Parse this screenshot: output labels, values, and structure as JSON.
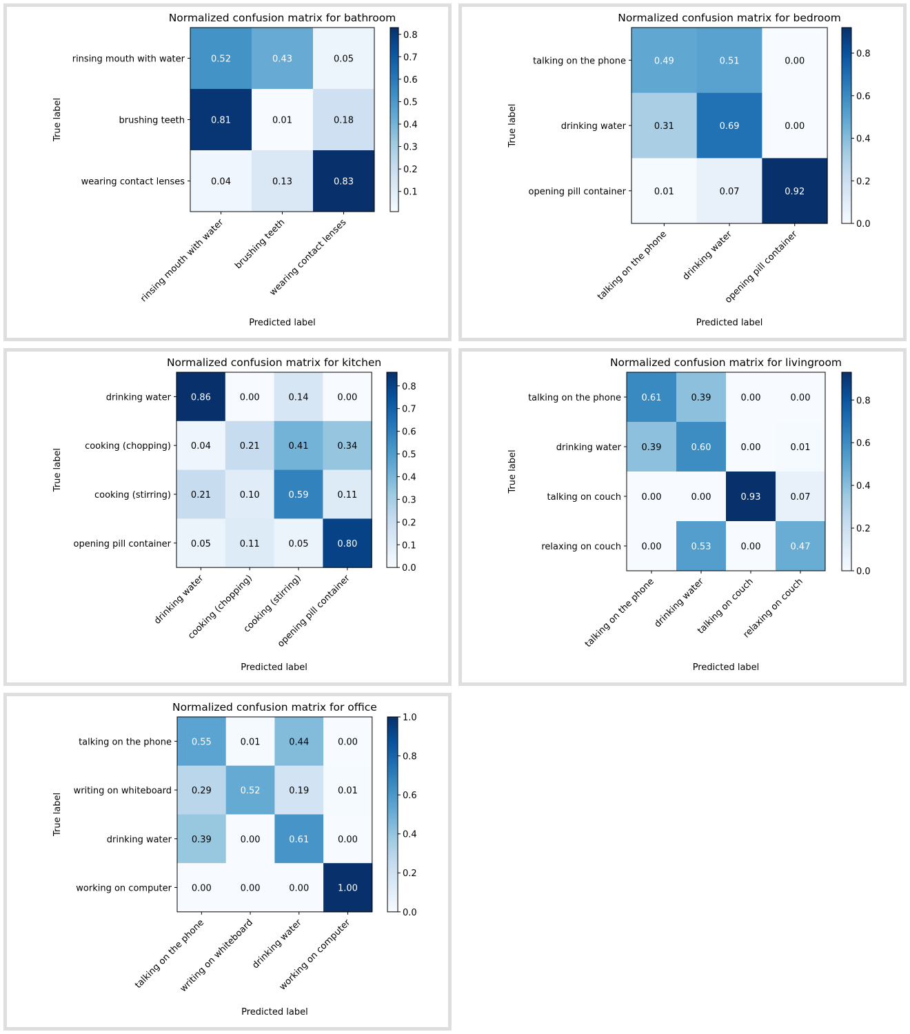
{
  "chart_data": [
    {
      "type": "heatmap",
      "title": "Normalized confusion matrix for bathroom",
      "xlabel": "Predicted label",
      "ylabel": "True label",
      "categories": [
        "rinsing mouth with water",
        "brushing teeth",
        "wearing contact lenses"
      ],
      "matrix": [
        [
          0.52,
          0.43,
          0.05
        ],
        [
          0.81,
          0.01,
          0.18
        ],
        [
          0.04,
          0.13,
          0.83
        ]
      ],
      "cell_text": [
        [
          "0.52",
          "0.43",
          "0.05"
        ],
        [
          "0.81",
          "0.01",
          "0.18"
        ],
        [
          "0.04",
          "0.13",
          "0.83"
        ]
      ],
      "colorbar": {
        "range": [
          0.01,
          0.83
        ],
        "ticks": [
          "0.1",
          "0.2",
          "0.3",
          "0.4",
          "0.5",
          "0.6",
          "0.7",
          "0.8"
        ],
        "colormap": "Blues"
      }
    },
    {
      "type": "heatmap",
      "title": "Normalized confusion matrix for bedroom",
      "xlabel": "Predicted label",
      "ylabel": "True label",
      "categories": [
        "talking on the phone",
        "drinking water",
        "opening pill container"
      ],
      "matrix": [
        [
          0.49,
          0.51,
          0.0
        ],
        [
          0.31,
          0.69,
          0.0
        ],
        [
          0.01,
          0.07,
          0.92
        ]
      ],
      "cell_text": [
        [
          "0.49",
          "0.51",
          "0.00"
        ],
        [
          "0.31",
          "0.69",
          "0.00"
        ],
        [
          "0.01",
          "0.07",
          "0.92"
        ]
      ],
      "colorbar": {
        "range": [
          0.0,
          0.92
        ],
        "ticks": [
          "0.0",
          "0.2",
          "0.4",
          "0.6",
          "0.8"
        ],
        "colormap": "Blues"
      }
    },
    {
      "type": "heatmap",
      "title": "Normalized confusion matrix for kitchen",
      "xlabel": "Predicted label",
      "ylabel": "True label",
      "categories": [
        "drinking water",
        "cooking (chopping)",
        "cooking (stirring)",
        "opening pill container"
      ],
      "matrix": [
        [
          0.86,
          0.0,
          0.14,
          0.0
        ],
        [
          0.04,
          0.21,
          0.41,
          0.34
        ],
        [
          0.21,
          0.1,
          0.59,
          0.11
        ],
        [
          0.05,
          0.11,
          0.05,
          0.8
        ]
      ],
      "cell_text": [
        [
          "0.86",
          "0.00",
          "0.14",
          "0.00"
        ],
        [
          "0.04",
          "0.21",
          "0.41",
          "0.34"
        ],
        [
          "0.21",
          "0.10",
          "0.59",
          "0.11"
        ],
        [
          "0.05",
          "0.11",
          "0.05",
          "0.80"
        ]
      ],
      "colorbar": {
        "range": [
          0.0,
          0.86
        ],
        "ticks": [
          "0.0",
          "0.1",
          "0.2",
          "0.3",
          "0.4",
          "0.5",
          "0.6",
          "0.7",
          "0.8"
        ],
        "colormap": "Blues"
      }
    },
    {
      "type": "heatmap",
      "title": "Normalized confusion matrix for livingroom",
      "xlabel": "Predicted label",
      "ylabel": "True label",
      "categories": [
        "talking on the phone",
        "drinking water",
        "talking on couch",
        "relaxing on couch"
      ],
      "matrix": [
        [
          0.61,
          0.39,
          0.0,
          0.0
        ],
        [
          0.39,
          0.6,
          0.0,
          0.01
        ],
        [
          0.0,
          0.0,
          0.93,
          0.07
        ],
        [
          0.0,
          0.53,
          0.0,
          0.47
        ]
      ],
      "cell_text": [
        [
          "0.61",
          "0.39",
          "0.00",
          "0.00"
        ],
        [
          "0.39",
          "0.60",
          "0.00",
          "0.01"
        ],
        [
          "0.00",
          "0.00",
          "0.93",
          "0.07"
        ],
        [
          "0.00",
          "0.53",
          "0.00",
          "0.47"
        ]
      ],
      "colorbar": {
        "range": [
          0.0,
          0.93
        ],
        "ticks": [
          "0.0",
          "0.2",
          "0.4",
          "0.6",
          "0.8"
        ],
        "colormap": "Blues"
      }
    },
    {
      "type": "heatmap",
      "title": "Normalized confusion matrix for office",
      "xlabel": "Predicted label",
      "ylabel": "True label",
      "categories": [
        "talking on the phone",
        "writing on whiteboard",
        "drinking water",
        "working on computer"
      ],
      "matrix": [
        [
          0.55,
          0.01,
          0.44,
          0.0
        ],
        [
          0.29,
          0.52,
          0.19,
          0.01
        ],
        [
          0.39,
          0.0,
          0.61,
          0.0
        ],
        [
          0.0,
          0.0,
          0.0,
          1.0
        ]
      ],
      "cell_text": [
        [
          "0.55",
          "0.01",
          "0.44",
          "0.00"
        ],
        [
          "0.29",
          "0.52",
          "0.19",
          "0.01"
        ],
        [
          "0.39",
          "0.00",
          "0.61",
          "0.00"
        ],
        [
          "0.00",
          "0.00",
          "0.00",
          "1.00"
        ]
      ],
      "colorbar": {
        "range": [
          0.0,
          1.0
        ],
        "ticks": [
          "0.0",
          "0.2",
          "0.4",
          "0.6",
          "0.8",
          "1.0"
        ],
        "colormap": "Blues"
      }
    }
  ]
}
